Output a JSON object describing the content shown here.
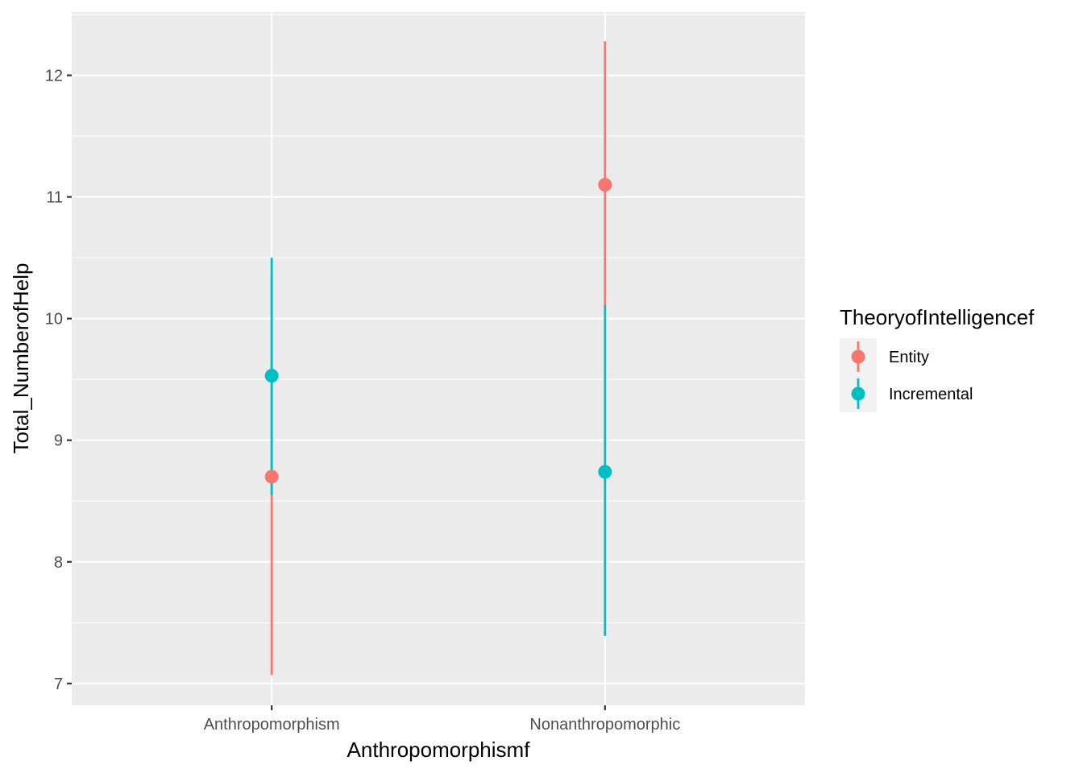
{
  "chart_data": {
    "type": "scatter",
    "subtype": "pointrange",
    "xlabel": "Anthropomorphismf",
    "ylabel": "Total_NumberofHelp",
    "categories": [
      "Anthropomorphism",
      "Nonanthropomorphic"
    ],
    "ylim": [
      6.82,
      12.52
    ],
    "yticks": [
      7,
      8,
      9,
      10,
      11,
      12
    ],
    "grid": true,
    "legend": {
      "title": "TheoryofIntelligencef",
      "placement": "right"
    },
    "series": [
      {
        "name": "Entity",
        "color": "#F8766D",
        "values": [
          8.7,
          11.1
        ],
        "lower": [
          7.07,
          10.1
        ],
        "upper": [
          10.35,
          12.28
        ]
      },
      {
        "name": "Incremental",
        "color": "#00BFC4",
        "values": [
          9.53,
          8.74
        ],
        "lower": [
          8.55,
          7.39
        ],
        "upper": [
          10.5,
          10.11
        ]
      }
    ]
  }
}
